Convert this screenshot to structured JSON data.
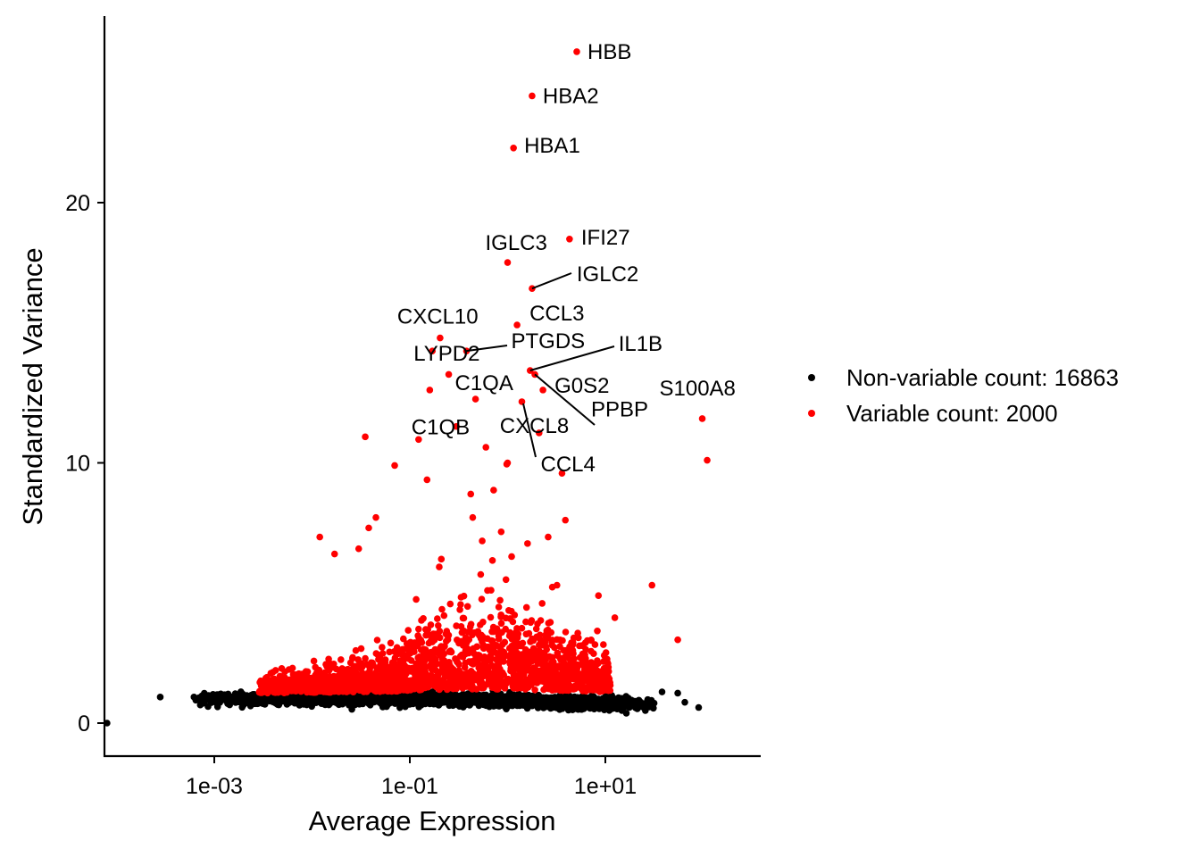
{
  "chart_data": {
    "type": "scatter",
    "title": "",
    "xlabel": "Average Expression",
    "ylabel": "Standardized Variance",
    "xscale": "log10",
    "xlim": [
      8e-05,
      300
    ],
    "ylim": [
      -1.3,
      27.2
    ],
    "x_ticks": [
      {
        "value": 0.001,
        "label": "1e-03"
      },
      {
        "value": 0.1,
        "label": "1e-01"
      },
      {
        "value": 10,
        "label": "1e+01"
      }
    ],
    "y_ticks": [
      {
        "value": 0,
        "label": "0"
      },
      {
        "value": 10,
        "label": "10"
      },
      {
        "value": 20,
        "label": "20"
      }
    ],
    "grid": false,
    "legend": {
      "placement": "right",
      "entries": [
        {
          "label": "Non-variable count: 16863",
          "color": "#000000"
        },
        {
          "label": "Variable count: 2000",
          "color": "#FF0000"
        }
      ]
    },
    "colors": {
      "non_variable": "#000000",
      "variable": "#FF0000"
    },
    "labeled_points": [
      {
        "gene": "HBB",
        "x": 5.1,
        "y": 25.8
      },
      {
        "gene": "HBA2",
        "x": 1.78,
        "y": 24.1
      },
      {
        "gene": "HBA1",
        "x": 1.15,
        "y": 22.1
      },
      {
        "gene": "IFI27",
        "x": 4.3,
        "y": 18.6
      },
      {
        "gene": "IGLC3",
        "x": 1.0,
        "y": 17.7
      },
      {
        "gene": "IGLC2",
        "x": 1.78,
        "y": 16.7
      },
      {
        "gene": "CCL3",
        "x": 1.25,
        "y": 15.3
      },
      {
        "gene": "CXCL10",
        "x": 0.204,
        "y": 14.8
      },
      {
        "gene": "LYPD2",
        "x": 0.17,
        "y": 14.3
      },
      {
        "gene": "PTGDS",
        "x": 0.38,
        "y": 14.3
      },
      {
        "gene": "IL1B",
        "x": 1.7,
        "y": 13.55
      },
      {
        "gene": "G0S2",
        "x": 2.3,
        "y": 12.8
      },
      {
        "gene": "C1QA",
        "x": 1.4,
        "y": 12.35
      },
      {
        "gene": "PPBP",
        "x": 1.9,
        "y": 13.4
      },
      {
        "gene": "S100A8",
        "x": 98,
        "y": 11.7
      },
      {
        "gene": "C1QB",
        "x": 0.123,
        "y": 10.9
      },
      {
        "gene": "CXCL8",
        "x": 2.1,
        "y": 11.15
      },
      {
        "gene": "CCL4",
        "x": 0.98,
        "y": 9.95
      }
    ],
    "variable_outliers": [
      {
        "x": 110,
        "y": 10.1
      },
      {
        "x": 3.6,
        "y": 9.6
      },
      {
        "x": 3.9,
        "y": 7.8
      },
      {
        "x": 0.07,
        "y": 9.9
      },
      {
        "x": 0.15,
        "y": 9.35
      },
      {
        "x": 0.42,
        "y": 8.8
      },
      {
        "x": 0.72,
        "y": 8.95
      },
      {
        "x": 0.035,
        "y": 11.0
      },
      {
        "x": 0.6,
        "y": 10.6
      },
      {
        "x": 0.3,
        "y": 11.4
      },
      {
        "x": 0.47,
        "y": 12.45
      },
      {
        "x": 0.25,
        "y": 13.4
      },
      {
        "x": 0.16,
        "y": 12.8
      },
      {
        "x": 1.0,
        "y": 10.0
      },
      {
        "x": 0.045,
        "y": 7.9
      },
      {
        "x": 0.038,
        "y": 7.5
      },
      {
        "x": 0.012,
        "y": 7.15
      },
      {
        "x": 30,
        "y": 5.3
      },
      {
        "x": 55,
        "y": 3.2
      },
      {
        "x": 0.2,
        "y": 6.0
      },
      {
        "x": 0.21,
        "y": 6.3
      },
      {
        "x": 0.86,
        "y": 7.35
      },
      {
        "x": 0.44,
        "y": 7.9
      },
      {
        "x": 2.6,
        "y": 7.15
      },
      {
        "x": 1.6,
        "y": 6.9
      },
      {
        "x": 0.55,
        "y": 7.0
      },
      {
        "x": 0.03,
        "y": 6.7
      },
      {
        "x": 0.017,
        "y": 6.5
      },
      {
        "x": 1.1,
        "y": 6.4
      },
      {
        "x": 0.7,
        "y": 6.25
      },
      {
        "x": 8.5,
        "y": 4.9
      },
      {
        "x": 12.5,
        "y": 4.05
      },
      {
        "x": 3.2,
        "y": 5.3
      }
    ],
    "non_variable_outliers": [
      {
        "x": 8e-05,
        "y": 0.0
      },
      {
        "x": 0.00028,
        "y": 1.0
      },
      {
        "x": 0.00062,
        "y": 1.0
      },
      {
        "x": 38,
        "y": 1.2
      },
      {
        "x": 55,
        "y": 1.15
      },
      {
        "x": 65,
        "y": 0.8
      },
      {
        "x": 90,
        "y": 0.6
      }
    ],
    "cloud_summary": {
      "non_variable_count": 16863,
      "variable_count": 2000
    }
  }
}
